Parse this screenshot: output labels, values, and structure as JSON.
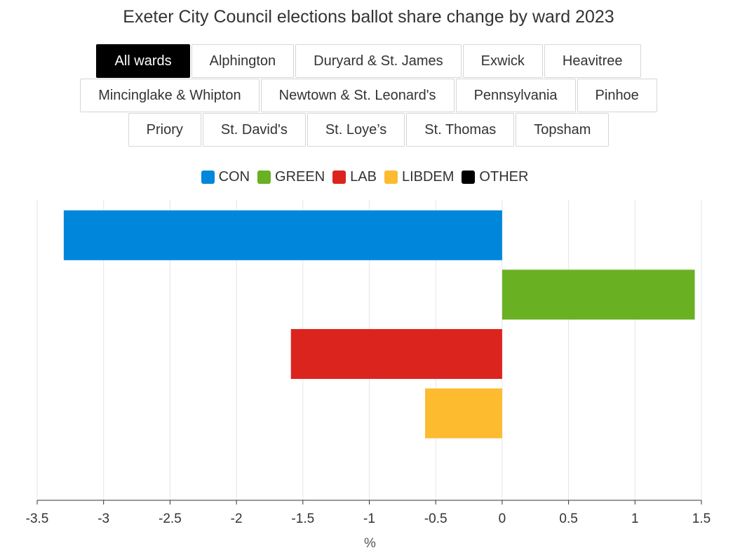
{
  "header": {
    "title": "Exeter City Council elections ballot share change by ward 2023"
  },
  "tabs": {
    "rows": [
      [
        "All wards",
        "Alphington",
        "Duryard & St. James",
        "Exwick",
        "Heavitree"
      ],
      [
        "Mincinglake & Whipton",
        "Newtown & St. Leonard's",
        "Pennsylvania",
        "Pinhoe"
      ],
      [
        "Priory",
        "St. David's",
        "St. Loye’s",
        "St. Thomas",
        "Topsham"
      ]
    ],
    "selected": "All wards"
  },
  "colors": {
    "CON": "#0087dc",
    "GREEN": "#6ab023",
    "LAB": "#dc241f",
    "LIBDEM": "#fdbb30",
    "OTHER": "#000000"
  },
  "chart_data": {
    "type": "bar",
    "orientation": "horizontal",
    "categories": [
      "CON",
      "GREEN",
      "LAB",
      "LIBDEM",
      "OTHER"
    ],
    "values": [
      -3.3,
      1.45,
      -1.59,
      -0.58,
      0
    ],
    "xlabel": "%",
    "xlim": [
      -3.5,
      1.5
    ],
    "xticks": [
      -3.5,
      -3,
      -2.5,
      -2,
      -1.5,
      -1,
      -0.5,
      0,
      0.5,
      1,
      1.5
    ],
    "grid": true,
    "legend": "top"
  }
}
